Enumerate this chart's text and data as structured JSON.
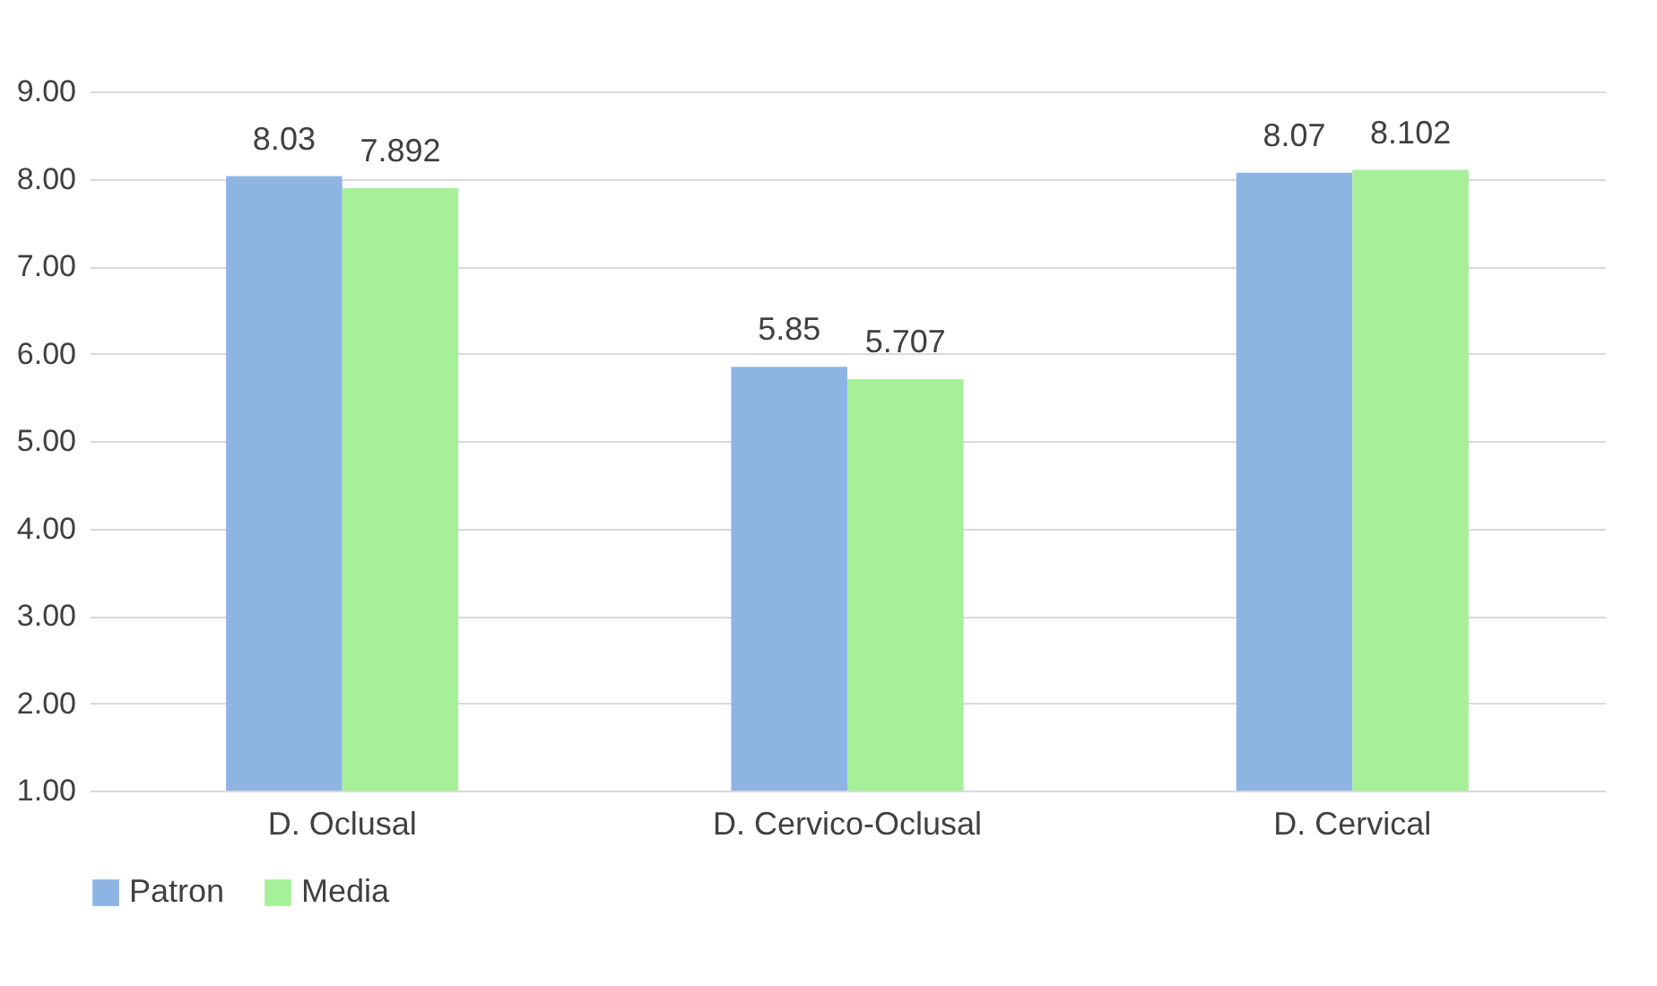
{
  "chart_data": {
    "type": "bar",
    "categories": [
      "D. Oclusal",
      "D. Cervico-Oclusal",
      "D. Cervical"
    ],
    "series": [
      {
        "name": "Patron",
        "color": "#8eb4e3",
        "values": [
          8.03,
          5.85,
          8.07
        ]
      },
      {
        "name": "Media",
        "color": "#a6f09a",
        "values": [
          7.892,
          5.707,
          8.102
        ]
      }
    ],
    "ylim": [
      1,
      9
    ],
    "yticks": [
      {
        "value": 1,
        "label": "1.00"
      },
      {
        "value": 2,
        "label": "2.00"
      },
      {
        "value": 3,
        "label": "3.00"
      },
      {
        "value": 4,
        "label": "4.00"
      },
      {
        "value": 5,
        "label": "5.00"
      },
      {
        "value": 6,
        "label": "6.00"
      },
      {
        "value": 7,
        "label": "7.00"
      },
      {
        "value": 8,
        "label": "8.00"
      },
      {
        "value": 9,
        "label": "9.00"
      }
    ],
    "grid": true,
    "legend": "bottom",
    "data_labels": true
  }
}
